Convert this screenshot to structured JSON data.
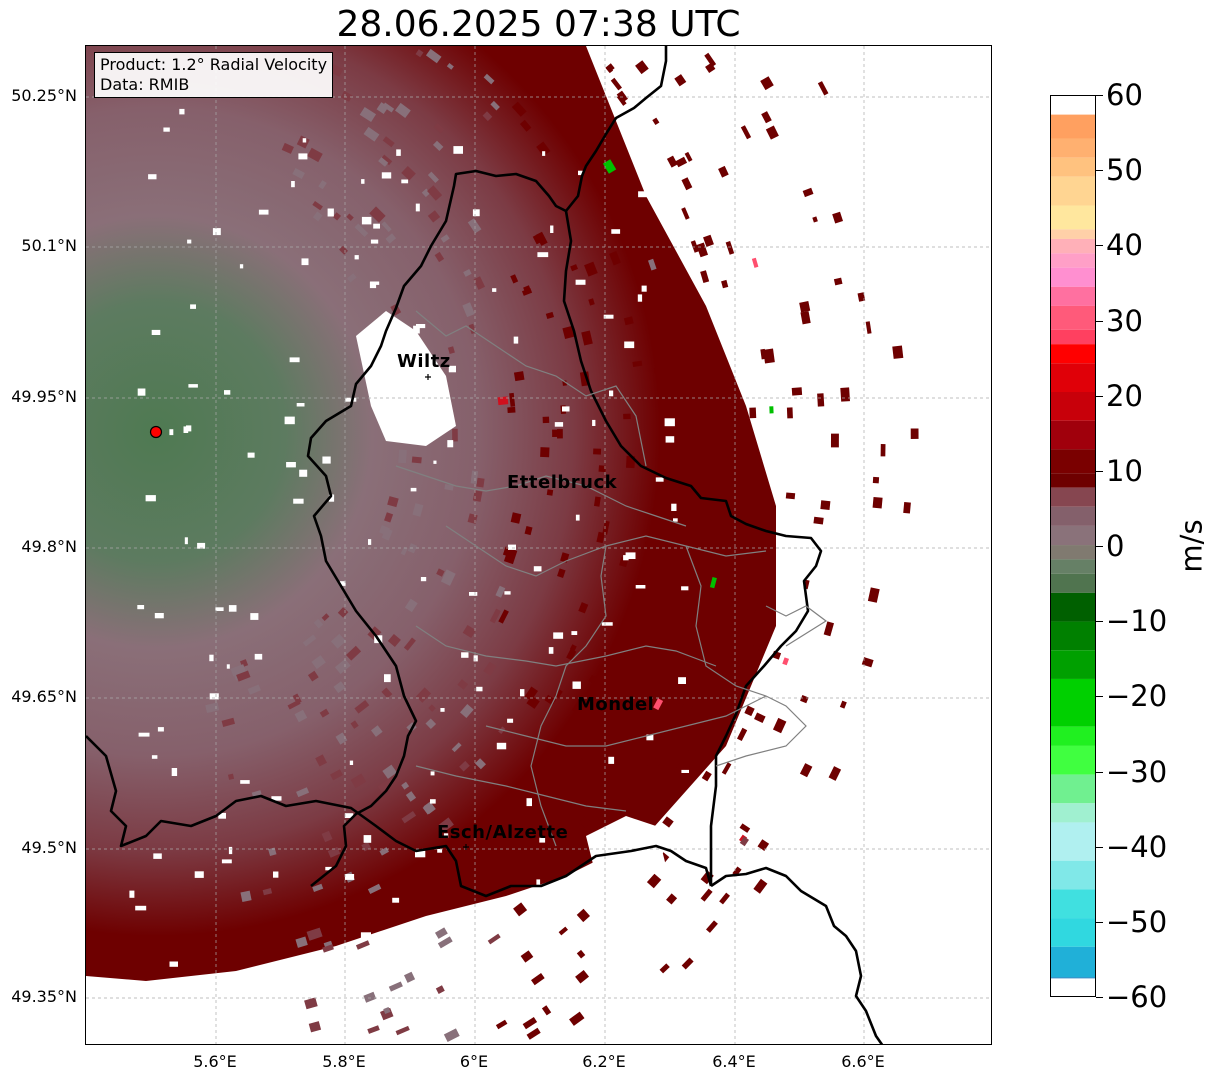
{
  "title": "28.06.2025 07:38 UTC",
  "info_box": {
    "product": "Product: 1.2° Radial Velocity",
    "source": "Data: RMIB"
  },
  "map": {
    "lat_range": [
      49.3,
      50.3
    ],
    "lon_range": [
      5.4,
      6.8
    ],
    "lat_ticks": [
      "50.25°N",
      "50.1°N",
      "49.95°N",
      "49.8°N",
      "49.65°N",
      "49.5°N",
      "49.35°N"
    ],
    "lon_ticks": [
      "5.6°E",
      "5.8°E",
      "6°E",
      "6.2°E",
      "6.4°E",
      "6.6°E"
    ],
    "cities": [
      "Wiltz",
      "Ettelbruck",
      "Mondel",
      "Esch/Alzette"
    ],
    "radar_site": "red-dot-marker",
    "colors": {
      "receding_strong": "#6e0000",
      "receding_medium": "#7f3b44",
      "near_zero": "#88707a",
      "approaching": "#537a57",
      "border": "#000000",
      "canton_lines": "#808080"
    }
  },
  "colorbar": {
    "label": "m/s",
    "min": -60,
    "max": 60,
    "ticks": [
      "60",
      "50",
      "40",
      "30",
      "20",
      "10",
      "0",
      "−10",
      "−20",
      "−30",
      "−40",
      "−50",
      "−60"
    ]
  }
}
